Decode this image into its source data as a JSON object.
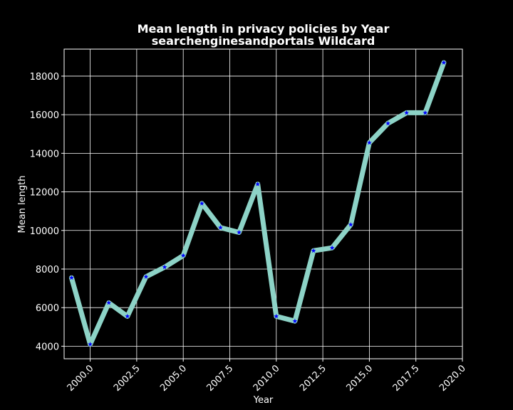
{
  "chart_data": {
    "type": "line",
    "title": "Mean length in privacy policies by Year",
    "subtitle": "searchenginesandportals Wildcard",
    "xlabel": "Year",
    "ylabel": "Mean length",
    "xlim": [
      1998.6,
      2020.0
    ],
    "ylim": [
      3350,
      19400
    ],
    "xticks": [
      2000.0,
      2002.5,
      2005.0,
      2007.5,
      2010.0,
      2012.5,
      2015.0,
      2017.5,
      2020.0
    ],
    "xtick_labels": [
      "2000.0",
      "2002.5",
      "2005.0",
      "2007.5",
      "2010.0",
      "2012.5",
      "2015.0",
      "2017.5",
      "2020.0"
    ],
    "yticks": [
      4000,
      6000,
      8000,
      10000,
      12000,
      14000,
      16000,
      18000
    ],
    "ytick_labels": [
      "4000",
      "6000",
      "8000",
      "10000",
      "12000",
      "14000",
      "16000",
      "18000"
    ],
    "grid": true,
    "series": [
      {
        "x": [
          1999,
          2000,
          2001,
          2002,
          2003,
          2004,
          2005,
          2006,
          2007,
          2008,
          2009,
          2010,
          2011,
          2012,
          2013,
          2014,
          2015,
          2016,
          2017,
          2018,
          2019
        ],
        "values": [
          7550,
          4100,
          6250,
          5550,
          7600,
          8100,
          8700,
          11400,
          10150,
          9900,
          12400,
          5550,
          5300,
          8950,
          9100,
          10300,
          14550,
          15550,
          16100,
          16100,
          18700
        ],
        "line_color": "#8dd3c7",
        "marker_color": "#0000ff"
      }
    ],
    "colors": {
      "background": "#000000",
      "axes": "#ffffff",
      "grid": "#ffffff"
    }
  }
}
